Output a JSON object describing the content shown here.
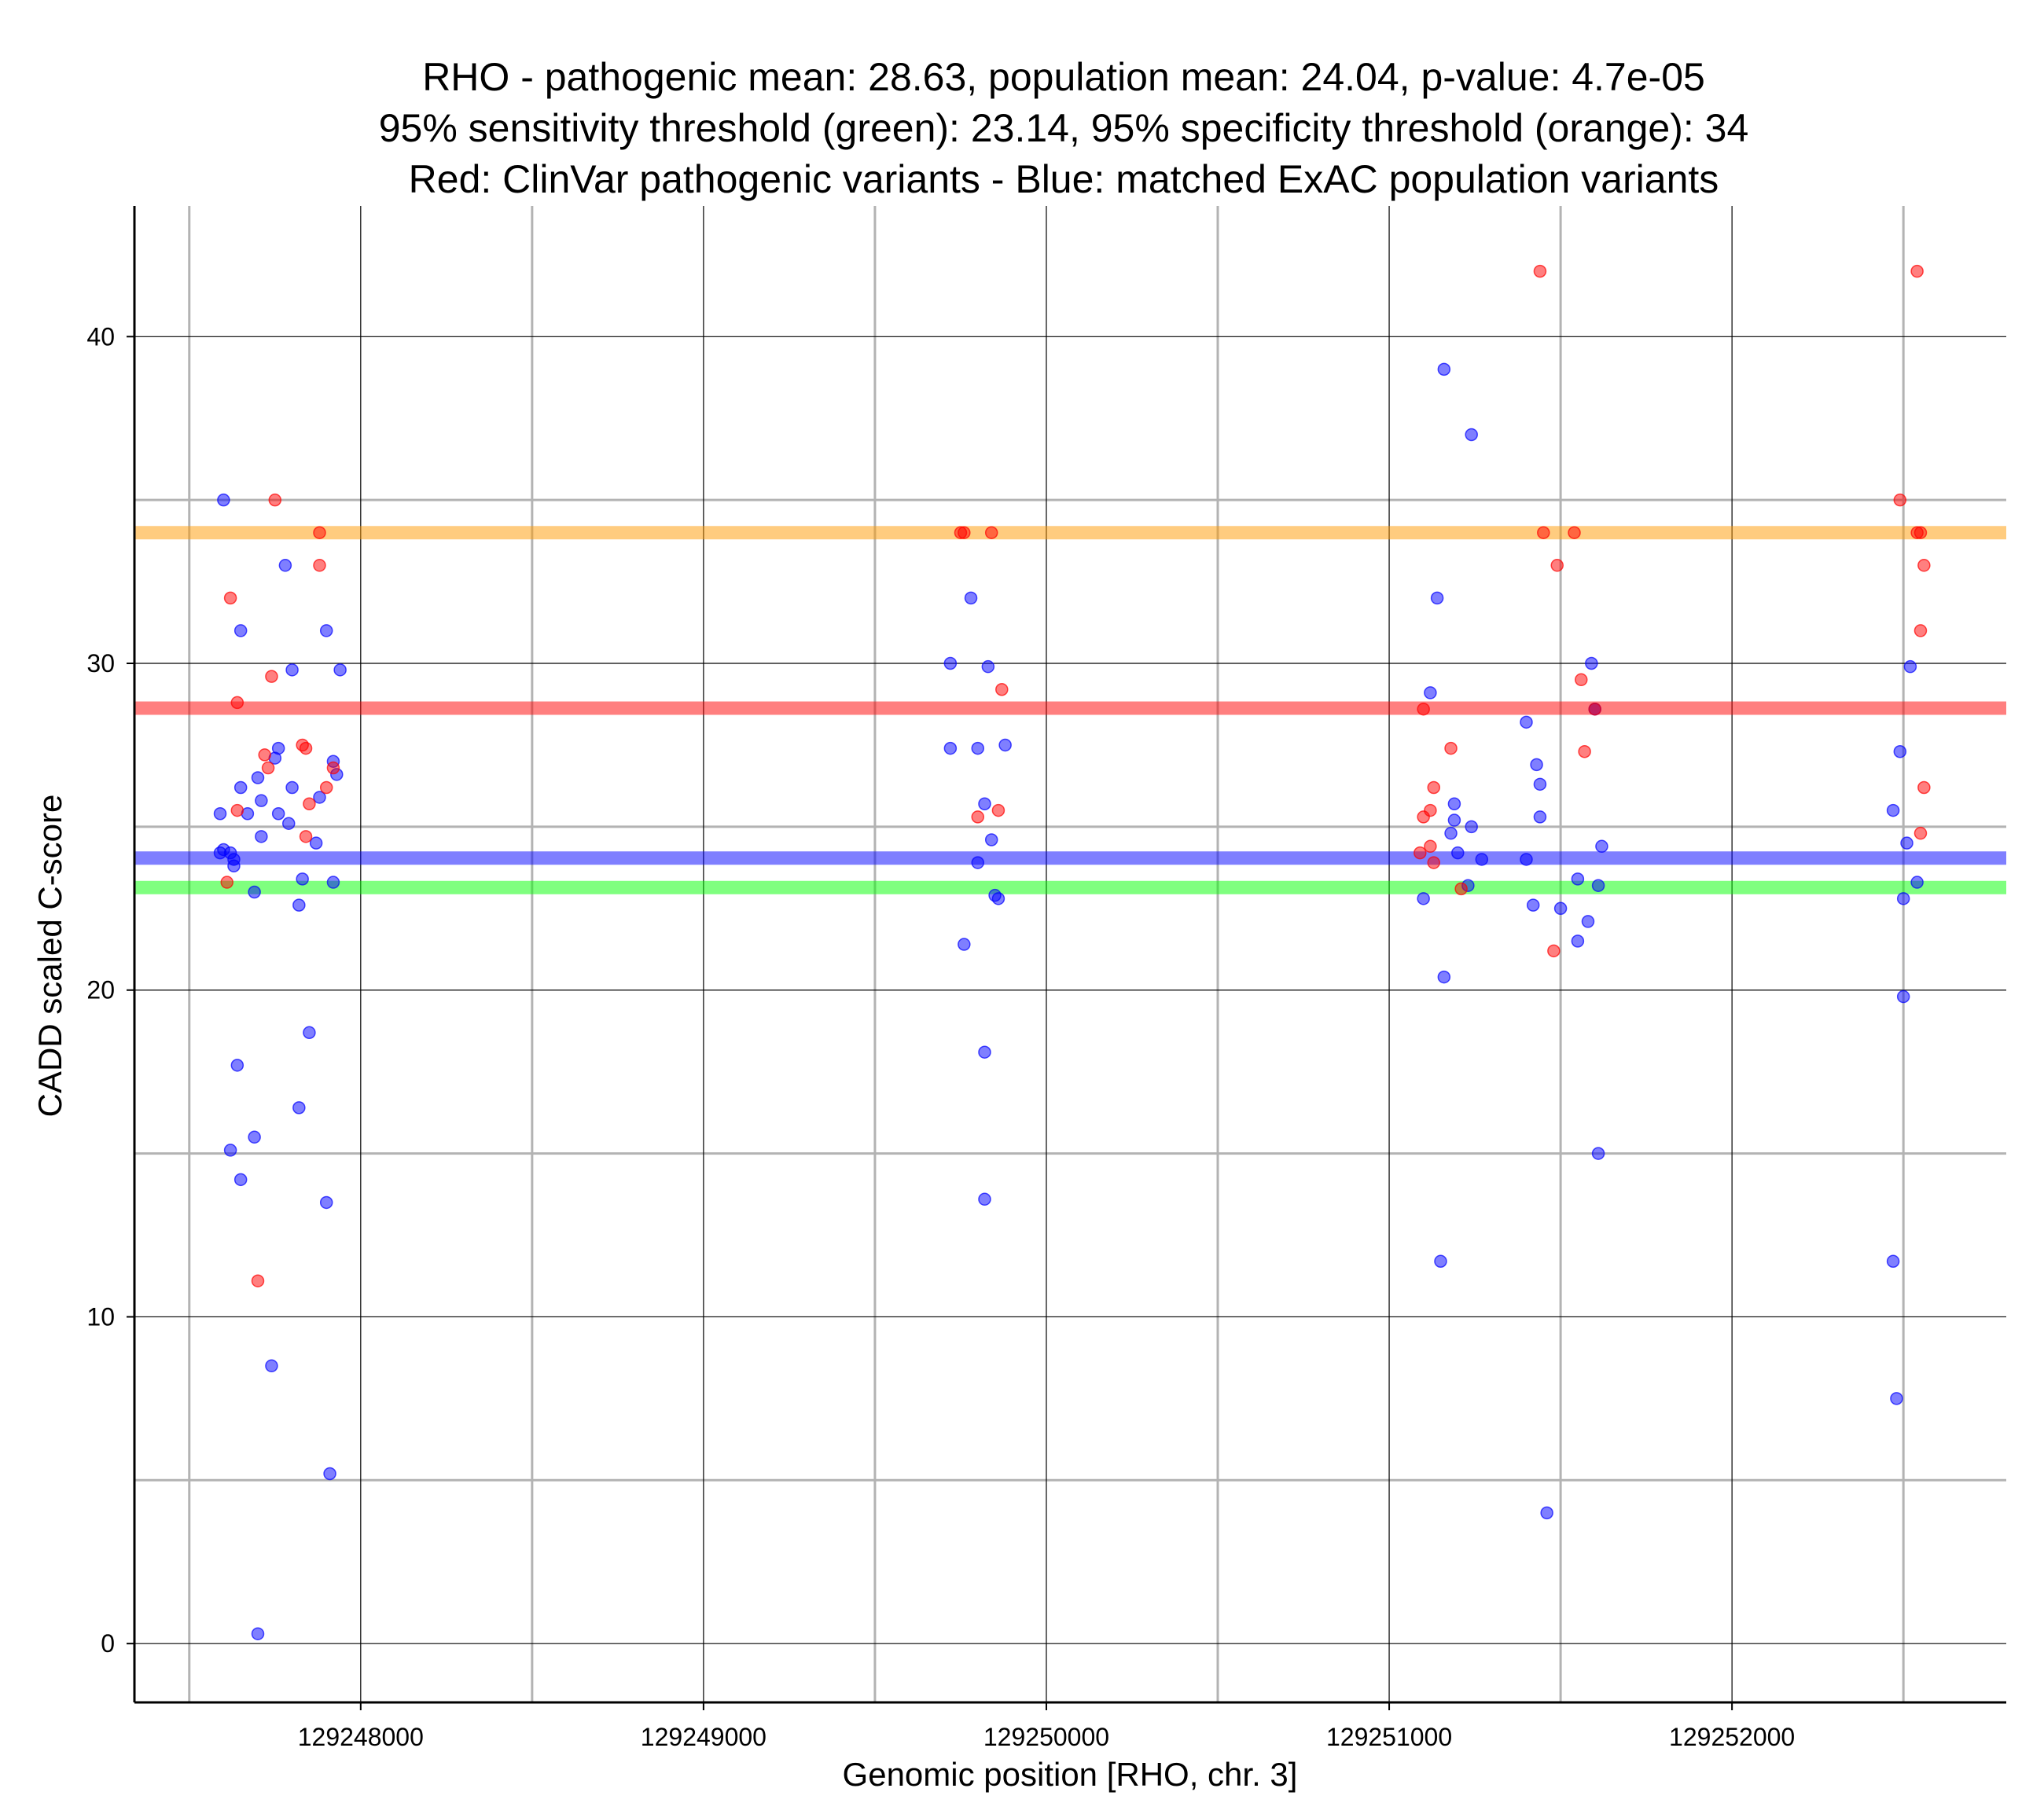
{
  "chart_data": {
    "type": "scatter",
    "title_lines": [
      "RHO - pathogenic mean: 28.63, population mean: 24.04, p-value: 4.7e-05",
      "95% sensitivity threshold (green): 23.14, 95% specificity threshold (orange): 34",
      "Red: ClinVar pathogenic variants - Blue: matched ExAC population variants"
    ],
    "xlabel": "Genomic position [RHO, chr. 3]",
    "ylabel": "CADD scaled C-score",
    "xlim": [
      129247340,
      129252800
    ],
    "ylim": [
      -1.8,
      44
    ],
    "x_ticks": [
      129248000,
      129249000,
      129250000,
      129251000,
      129252000
    ],
    "x_tick_labels": [
      "129248000",
      "129249000",
      "129250000",
      "129251000",
      "129252000"
    ],
    "y_ticks": [
      0,
      10,
      20,
      30,
      40
    ],
    "y_tick_labels": [
      "0",
      "10",
      "20",
      "30",
      "40"
    ],
    "x_minor_grid": [
      129247500,
      129248500,
      129249500,
      129250500,
      129251500,
      129252500
    ],
    "y_minor_grid": [
      5,
      15,
      25,
      35
    ],
    "reference_lines": [
      {
        "name": "pathogenic-mean",
        "y": 28.63,
        "color": "#ff0000"
      },
      {
        "name": "population-mean",
        "y": 24.04,
        "color": "#0000ff"
      },
      {
        "name": "sensitivity-threshold",
        "y": 23.14,
        "color": "#00ff00"
      },
      {
        "name": "specificity-threshold",
        "y": 34,
        "color": "#ff9900"
      }
    ],
    "series": [
      {
        "name": "ExAC population variants",
        "color": "#0000ff",
        "points": [
          [
            129247600,
            35
          ],
          [
            129247590,
            25.4
          ],
          [
            129247590,
            24.2
          ],
          [
            129247600,
            24.3
          ],
          [
            129247620,
            24.2
          ],
          [
            129247630,
            23.8
          ],
          [
            129247630,
            24
          ],
          [
            129247620,
            15.1
          ],
          [
            129247640,
            17.7
          ],
          [
            129247650,
            14.2
          ],
          [
            129247650,
            31
          ],
          [
            129247650,
            26.2
          ],
          [
            129247670,
            25.4
          ],
          [
            129247690,
            15.5
          ],
          [
            129247690,
            23
          ],
          [
            129247700,
            26.5
          ],
          [
            129247710,
            25.8
          ],
          [
            129247710,
            24.7
          ],
          [
            129247700,
            0.3
          ],
          [
            129247740,
            8.5
          ],
          [
            129247750,
            27.1
          ],
          [
            129247760,
            27.4
          ],
          [
            129247760,
            25.4
          ],
          [
            129247780,
            33
          ],
          [
            129247790,
            25.1
          ],
          [
            129247800,
            29.8
          ],
          [
            129247800,
            26.2
          ],
          [
            129247820,
            22.6
          ],
          [
            129247820,
            16.4
          ],
          [
            129247830,
            23.4
          ],
          [
            129247850,
            18.7
          ],
          [
            129247870,
            24.5
          ],
          [
            129247880,
            25.9
          ],
          [
            129247900,
            31
          ],
          [
            129247900,
            13.5
          ],
          [
            129247910,
            5.2
          ],
          [
            129247920,
            23.3
          ],
          [
            129247920,
            27
          ],
          [
            129247930,
            26.6
          ],
          [
            129247940,
            29.8
          ],
          [
            129249720,
            30
          ],
          [
            129249720,
            27.4
          ],
          [
            129249760,
            21.4
          ],
          [
            129249780,
            32
          ],
          [
            129249800,
            27.4
          ],
          [
            129249800,
            23.9
          ],
          [
            129249820,
            25.7
          ],
          [
            129249820,
            18.1
          ],
          [
            129249820,
            13.6
          ],
          [
            129249830,
            29.9
          ],
          [
            129249840,
            24.6
          ],
          [
            129249850,
            22.9
          ],
          [
            129249860,
            22.8
          ],
          [
            129249880,
            27.5
          ],
          [
            129251100,
            22.8
          ],
          [
            129251120,
            29.1
          ],
          [
            129251140,
            32
          ],
          [
            129251150,
            11.7
          ],
          [
            129251160,
            39
          ],
          [
            129251160,
            20.4
          ],
          [
            129251180,
            24.8
          ],
          [
            129251190,
            25.7
          ],
          [
            129251190,
            25.2
          ],
          [
            129251200,
            24.2
          ],
          [
            129251230,
            23.2
          ],
          [
            129251240,
            37
          ],
          [
            129251240,
            25
          ],
          [
            129251270,
            24
          ],
          [
            129251400,
            24
          ],
          [
            129251400,
            28.2
          ],
          [
            129251420,
            22.6
          ],
          [
            129251430,
            26.9
          ],
          [
            129251440,
            25.3
          ],
          [
            129251440,
            26.3
          ],
          [
            129251460,
            4
          ],
          [
            129251500,
            22.5
          ],
          [
            129251550,
            23.4
          ],
          [
            129251550,
            21.5
          ],
          [
            129251580,
            22.1
          ],
          [
            129251590,
            30
          ],
          [
            129251600,
            28.6
          ],
          [
            129251610,
            15
          ],
          [
            129251610,
            23.2
          ],
          [
            129251620,
            24.4
          ],
          [
            129252470,
            25.5
          ],
          [
            129252470,
            11.7
          ],
          [
            129252480,
            7.5
          ],
          [
            129252490,
            27.3
          ],
          [
            129252500,
            22.8
          ],
          [
            129252500,
            19.8
          ],
          [
            129252510,
            24.5
          ],
          [
            129252520,
            29.9
          ],
          [
            129252540,
            23.3
          ]
        ]
      },
      {
        "name": "ClinVar pathogenic variants",
        "color": "#ff0000",
        "points": [
          [
            129247620,
            32
          ],
          [
            129247610,
            23.3
          ],
          [
            129247640,
            28.8
          ],
          [
            129247640,
            25.5
          ],
          [
            129247700,
            11.1
          ],
          [
            129247720,
            27.2
          ],
          [
            129247730,
            26.8
          ],
          [
            129247740,
            29.6
          ],
          [
            129247750,
            35
          ],
          [
            129247830,
            27.5
          ],
          [
            129247840,
            27.4
          ],
          [
            129247840,
            24.7
          ],
          [
            129247850,
            25.7
          ],
          [
            129247880,
            34
          ],
          [
            129247880,
            33
          ],
          [
            129247900,
            26.2
          ],
          [
            129247920,
            26.8
          ],
          [
            129249750,
            34
          ],
          [
            129249760,
            34
          ],
          [
            129249800,
            25.3
          ],
          [
            129249840,
            34
          ],
          [
            129249860,
            25.5
          ],
          [
            129249870,
            29.2
          ],
          [
            129251090,
            24.2
          ],
          [
            129251100,
            28.6
          ],
          [
            129251100,
            25.3
          ],
          [
            129251120,
            25.5
          ],
          [
            129251120,
            24.4
          ],
          [
            129251130,
            26.2
          ],
          [
            129251130,
            23.9
          ],
          [
            129251180,
            27.4
          ],
          [
            129251210,
            23.1
          ],
          [
            129251440,
            42
          ],
          [
            129251450,
            34
          ],
          [
            129251480,
            21.2
          ],
          [
            129251490,
            33
          ],
          [
            129251540,
            34
          ],
          [
            129251560,
            29.5
          ],
          [
            129251570,
            27.3
          ],
          [
            129251600,
            28.6
          ],
          [
            129252490,
            35
          ],
          [
            129252540,
            42
          ],
          [
            129252540,
            34
          ],
          [
            129252550,
            34
          ],
          [
            129252550,
            31
          ],
          [
            129252560,
            33
          ],
          [
            129252560,
            26.2
          ],
          [
            129252550,
            24.8
          ]
        ]
      }
    ]
  }
}
